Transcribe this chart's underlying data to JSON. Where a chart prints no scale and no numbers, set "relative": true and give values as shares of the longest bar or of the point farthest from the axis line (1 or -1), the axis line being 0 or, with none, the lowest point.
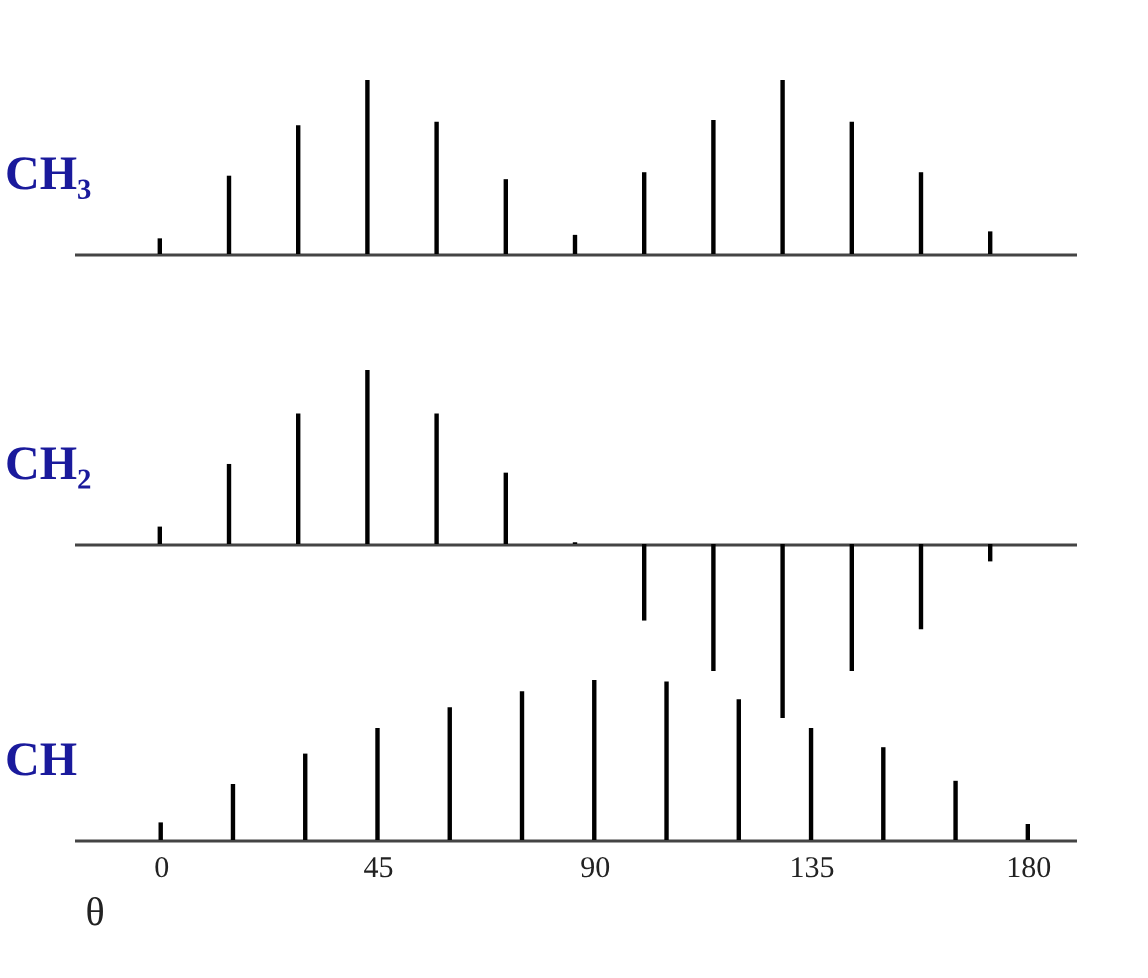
{
  "chart_data": [
    {
      "type": "bar",
      "relative": true,
      "ylabel": "CH₃",
      "color": "#000000",
      "categories": [
        null,
        null,
        null,
        null,
        null,
        null,
        null,
        null,
        null,
        null,
        null,
        null,
        null
      ],
      "tick_labels": false,
      "grid": false,
      "values": [
        0.09,
        0.45,
        0.74,
        1,
        0.76,
        0.43,
        0.11,
        0.47,
        0.77,
        1,
        0.76,
        0.47,
        0.13
      ]
    },
    {
      "type": "bar",
      "relative": true,
      "ylabel": "CH₂",
      "color": "#000000",
      "categories": [
        null,
        null,
        null,
        null,
        null,
        null,
        null,
        null,
        null,
        null,
        null,
        null,
        null
      ],
      "tick_labels": false,
      "grid": false,
      "values": [
        0.1,
        0.46,
        0.75,
        1,
        0.75,
        0.41,
        0.01,
        -0.44,
        -0.73,
        -1,
        -0.73,
        -0.49,
        -0.1
      ]
    },
    {
      "type": "bar",
      "relative": true,
      "ylabel": "CH",
      "xlabel": "θ",
      "color": "#000000",
      "x": [
        0,
        15,
        30,
        45,
        60,
        75,
        90,
        105,
        120,
        135,
        150,
        165,
        180
      ],
      "xlim": [
        -18,
        190
      ],
      "xticks": [
        0,
        45,
        90,
        135,
        180
      ],
      "tick_labels": "x",
      "grid": false,
      "values": [
        0.11,
        0.35,
        0.54,
        0.7,
        0.83,
        0.93,
        1,
        0.99,
        0.88,
        0.7,
        0.58,
        0.37,
        0.1
      ]
    }
  ]
}
